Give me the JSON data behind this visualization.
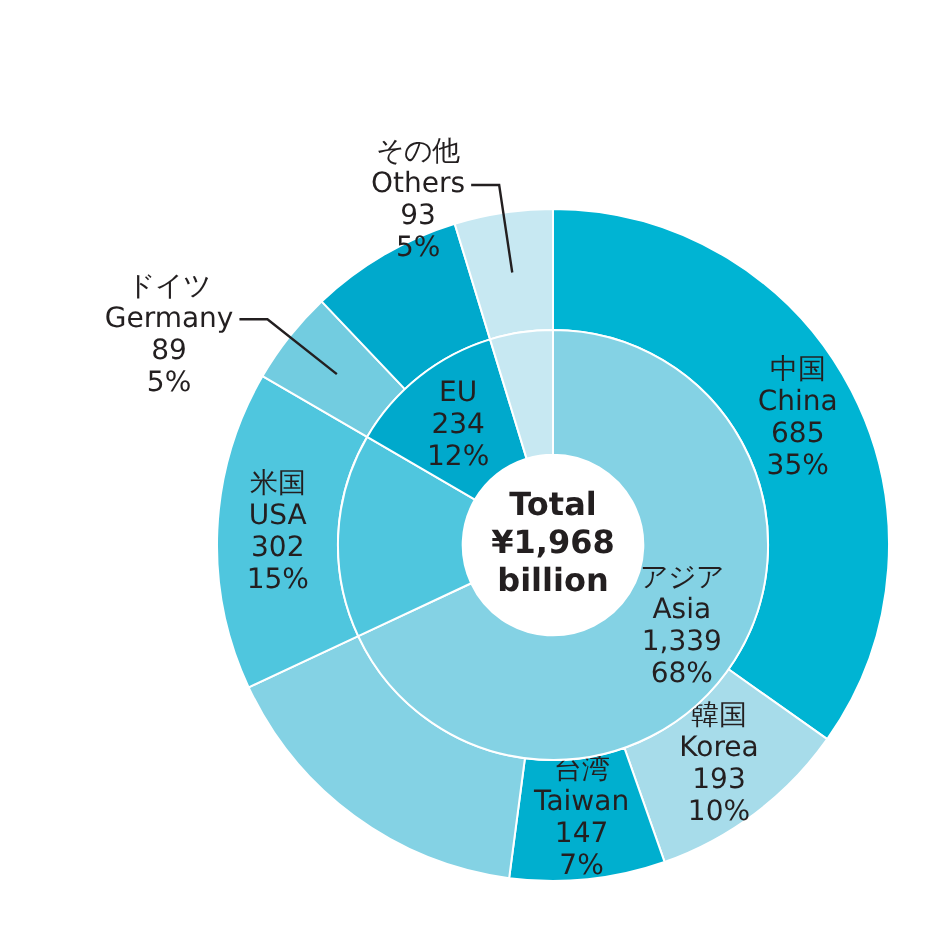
{
  "chart_data": [
    {
      "type": "donut",
      "categories": [
        "中国\nChina",
        "韓国\nKorea",
        "台湾\nTaiwan",
        null,
        "米国\nUSA",
        "ドイツ\nGermany",
        null,
        "その他\nOthers"
      ],
      "values": [
        685,
        193,
        147,
        314,
        302,
        89,
        145,
        93
      ],
      "colors": [
        "#00b4d3",
        "#a7dcea",
        "#00afcf",
        "#84d2e4",
        "#4fc6de",
        "#72cce0",
        "#00a9cc",
        "#c7e8f2"
      ],
      "value_labels": [
        "685\n35%",
        "193\n10%",
        "147\n7%",
        null,
        "302\n15%",
        "89\n5%",
        null,
        "93\n5%"
      ]
    },
    {
      "type": "donut",
      "title": "Total\n¥1,968\nbillion",
      "categories": [
        "アジア\nAsia",
        null,
        "EU",
        null
      ],
      "values": [
        1339,
        302,
        234,
        93
      ],
      "colors": [
        "#84d2e4",
        "#4fc6de",
        "#00a9cc",
        "#c7e8f2"
      ],
      "value_labels": [
        "1,339\n68%",
        null,
        "234\n12%",
        null
      ]
    }
  ]
}
